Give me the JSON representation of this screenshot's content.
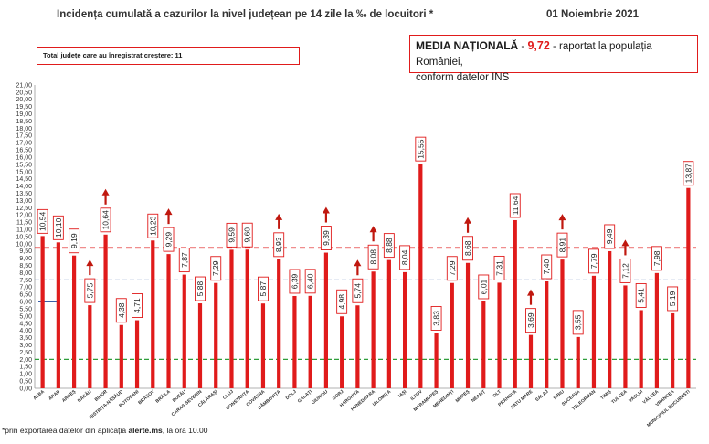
{
  "header": {
    "title": "Incidența cumulată a cazurilor la nivel județean pe 14 zile la ‰ de locuitori *",
    "date": "01 Noiembrie 2021"
  },
  "increase_box": {
    "text": "Total județe care au înregistrat creștere:  11"
  },
  "media_box": {
    "label": "MEDIA NAȚIONALĂ",
    "dash1": " - ",
    "value": "9,72",
    "dash2": " -  ",
    "text1": "raportat la populația României,",
    "text2": "conform datelor INS"
  },
  "footnote": {
    "prefix": "*prin exportarea datelor din aplicația ",
    "app": "alerte.ms",
    "suffix": ", la ora 10.00"
  },
  "colors": {
    "bar": "#e01b1b",
    "national_line": "#e01b1b",
    "blue_line": "#3a5fa8",
    "green_line": "#2e9e3a",
    "arrow": "#c0180f"
  },
  "chart_data": {
    "type": "bar",
    "categories": [
      "ALBA",
      "ARAD",
      "ARGEȘ",
      "BACĂU",
      "BIHOR",
      "BISTRIȚA-NĂSĂUD",
      "BOTOȘANI",
      "BRAȘOV",
      "BRĂILA",
      "BUZĂU",
      "CARAȘ-SEVERIN",
      "CĂLĂRAȘI",
      "CLUJ",
      "CONSTANȚA",
      "COVASNA",
      "DÂMBOVIȚA",
      "DOLJ",
      "GALAȚI",
      "GIURGIU",
      "GORJ",
      "HARGHITA",
      "HUNEDOARA",
      "IALOMIȚA",
      "IAȘI",
      "ILFOV",
      "MARAMUREȘ",
      "MEHEDINȚI",
      "MUREȘ",
      "NEAMȚ",
      "OLT",
      "PRAHOVA",
      "SATU MARE",
      "SĂLAJ",
      "SIBIU",
      "SUCEAVA",
      "TELEORMAN",
      "TIMIȘ",
      "TULCEA",
      "VASLUI",
      "VÂLCEA",
      "VRANCEA",
      "MUNICIPIUL BUCUREȘTI"
    ],
    "values": [
      10.54,
      10.1,
      9.19,
      5.75,
      10.64,
      4.38,
      4.71,
      10.23,
      9.29,
      7.87,
      5.88,
      7.29,
      9.59,
      9.6,
      5.87,
      8.93,
      6.39,
      6.4,
      9.39,
      4.98,
      5.74,
      8.08,
      8.88,
      8.04,
      15.55,
      3.83,
      7.29,
      8.68,
      6.01,
      7.31,
      11.64,
      3.69,
      7.4,
      8.91,
      3.55,
      7.79,
      9.49,
      7.12,
      5.41,
      7.98,
      5.19,
      13.87
    ],
    "labels": [
      "10,54",
      "10,10",
      "9,19",
      "5,75",
      "10,64",
      "4,38",
      "4,71",
      "10,23",
      "9,29",
      "7,87",
      "5,88",
      "7,29",
      "9,59",
      "9,60",
      "5,87",
      "8,93",
      "6,39",
      "6,40",
      "9,39",
      "4,98",
      "5,74",
      "8,08",
      "8,88",
      "8,04",
      "15,55",
      "3,83",
      "7,29",
      "8,68",
      "6,01",
      "7,31",
      "11,64",
      "3,69",
      "7,40",
      "8,91",
      "3,55",
      "7,79",
      "9,49",
      "7,12",
      "5,41",
      "7,98",
      "5,19",
      "13,87"
    ],
    "increase_arrows": [
      "BACĂU",
      "BIHOR",
      "BRĂILA",
      "DÂMBOVIȚA",
      "GIURGIU",
      "HARGHITA",
      "HUNEDOARA",
      "MUREȘ",
      "SATU MARE",
      "SIBIU",
      "TULCEA"
    ],
    "ylim": [
      0,
      21
    ],
    "ytick_step": 0.5,
    "yticks": [
      "0,00",
      "0,50",
      "1,00",
      "1,50",
      "2,00",
      "2,50",
      "3,00",
      "3,50",
      "4,00",
      "4,50",
      "5,00",
      "5,50",
      "6,00",
      "6,50",
      "7,00",
      "7,50",
      "8,00",
      "8,50",
      "9,00",
      "9,50",
      "10,00",
      "10,50",
      "11,00",
      "11,50",
      "12,00",
      "12,50",
      "13,00",
      "13,50",
      "14,00",
      "14,50",
      "15,00",
      "15,50",
      "16,00",
      "16,50",
      "17,00",
      "17,50",
      "18,00",
      "18,50",
      "19,00",
      "19,50",
      "20,00",
      "20,50",
      "21,00"
    ],
    "reference_lines": [
      {
        "value": 9.72,
        "style": "dashed",
        "color": "#e01b1b"
      },
      {
        "value": 7.5,
        "style": "dashed",
        "color": "#3a5fa8"
      },
      {
        "value": 2.0,
        "style": "dashed",
        "color": "#2e9e3a"
      }
    ],
    "grid": false,
    "legend": "none"
  }
}
